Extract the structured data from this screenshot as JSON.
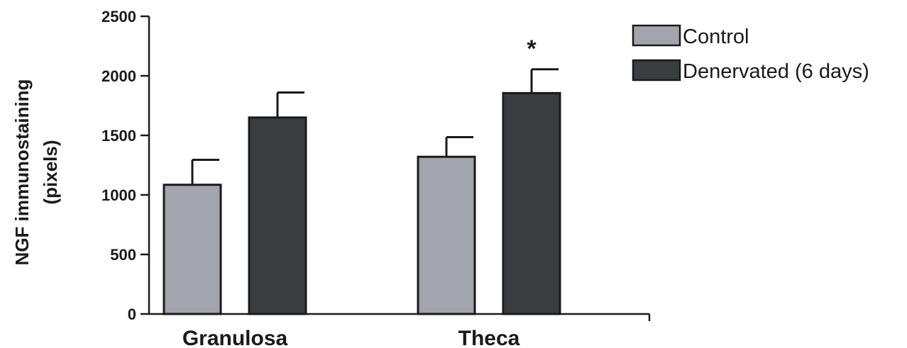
{
  "chart_data": {
    "type": "bar",
    "title": "",
    "xlabel": "",
    "ylabel_lines": [
      "NGF immunostaining",
      "(pixels)"
    ],
    "categories": [
      "Granulosa",
      "Theca"
    ],
    "series": [
      {
        "name": "Control",
        "values": [
          1085,
          1320
        ],
        "errors": [
          210,
          165
        ],
        "color": "#a2a5ab"
      },
      {
        "name": "Denervated (6 days)",
        "values": [
          1650,
          1855
        ],
        "errors": [
          210,
          200
        ],
        "color": "#3a3d40"
      }
    ],
    "annotations": [
      {
        "text": "*",
        "category": "Theca",
        "series": "Denervated (6 days)"
      }
    ],
    "ylim": [
      0,
      2500
    ],
    "yticks": [
      0,
      500,
      1000,
      1500,
      2000,
      2500
    ],
    "grid": false,
    "legend_position": "top-right"
  }
}
